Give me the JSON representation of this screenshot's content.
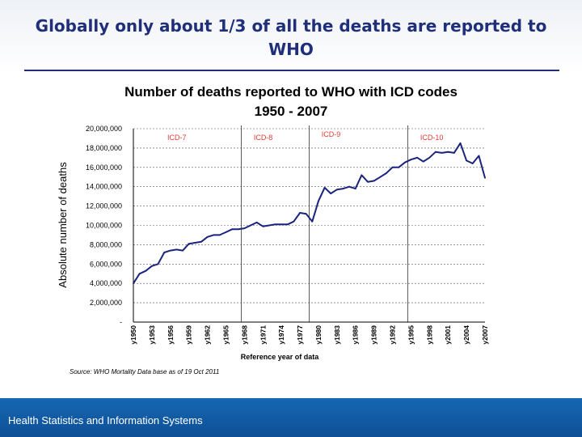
{
  "slide": {
    "title": "Globally only about 1/3 of all the deaths are reported to WHO",
    "footer": "Health Statistics and Information Systems"
  },
  "colors": {
    "line": "#1a237e",
    "icd_label": "#e53935",
    "title": "#1f2f7a",
    "footer": "#1668b4"
  },
  "chart_data": {
    "type": "line",
    "title": "Number of deaths reported to WHO with ICD codes",
    "subtitle": "1950 - 2007",
    "xlabel": "Reference year of data",
    "ylabel": "Absolute number of deaths",
    "source": "Source: WHO Mortality Data base as of 19 Oct 2011",
    "ylim": [
      0,
      20000000
    ],
    "xlim": [
      1950,
      2007
    ],
    "grid": "horizontal-dashed",
    "y_ticks": [
      {
        "value": 0,
        "label": "-"
      },
      {
        "value": 2000000,
        "label": "2,000,000"
      },
      {
        "value": 4000000,
        "label": "4,000,000"
      },
      {
        "value": 6000000,
        "label": "6,000,000"
      },
      {
        "value": 8000000,
        "label": "8,000,000"
      },
      {
        "value": 10000000,
        "label": "10,000,000"
      },
      {
        "value": 12000000,
        "label": "12,000,000"
      },
      {
        "value": 14000000,
        "label": "14,000,000"
      },
      {
        "value": 16000000,
        "label": "16,000,000"
      },
      {
        "value": 18000000,
        "label": "18,000,000"
      },
      {
        "value": 20000000,
        "label": "20,000,000"
      }
    ],
    "x_ticks": [
      {
        "value": 1950,
        "label": "y1950"
      },
      {
        "value": 1953,
        "label": "y1953"
      },
      {
        "value": 1956,
        "label": "y1956"
      },
      {
        "value": 1959,
        "label": "y1959"
      },
      {
        "value": 1962,
        "label": "y1962"
      },
      {
        "value": 1965,
        "label": "y1965"
      },
      {
        "value": 1968,
        "label": "y1968"
      },
      {
        "value": 1971,
        "label": "y1971"
      },
      {
        "value": 1974,
        "label": "y1974"
      },
      {
        "value": 1977,
        "label": "y1977"
      },
      {
        "value": 1980,
        "label": "y1980"
      },
      {
        "value": 1983,
        "label": "y1983"
      },
      {
        "value": 1986,
        "label": "y1986"
      },
      {
        "value": 1989,
        "label": "y1989"
      },
      {
        "value": 1992,
        "label": "y1992"
      },
      {
        "value": 1995,
        "label": "y1995"
      },
      {
        "value": 1998,
        "label": "y1998"
      },
      {
        "value": 2001,
        "label": "y2001"
      },
      {
        "value": 2004,
        "label": "y2004"
      },
      {
        "value": 2007,
        "label": "y2007"
      }
    ],
    "icd_periods": [
      {
        "label": "ICD-7",
        "start": 1950,
        "end": 1967
      },
      {
        "label": "ICD-8",
        "start": 1968,
        "end": 1978
      },
      {
        "label": "ICD-9",
        "start": 1979,
        "end": 1994
      },
      {
        "label": "ICD-10",
        "start": 1995,
        "end": 2007
      }
    ],
    "series": [
      {
        "x": [
          1950,
          1951,
          1952,
          1953,
          1954,
          1955,
          1956,
          1957,
          1958,
          1959,
          1960,
          1961,
          1962,
          1963,
          1964,
          1965,
          1966,
          1967,
          1968,
          1969,
          1970,
          1971,
          1972,
          1973,
          1974,
          1975,
          1976,
          1977,
          1978,
          1979,
          1980,
          1981,
          1982,
          1983,
          1984,
          1985,
          1986,
          1987,
          1988,
          1989,
          1990,
          1991,
          1992,
          1993,
          1994,
          1995,
          1996,
          1997,
          1998,
          1999,
          2000,
          2001,
          2002,
          2003,
          2004,
          2005,
          2006,
          2007
        ],
        "y": [
          4000000,
          5000000,
          5300000,
          5800000,
          6000000,
          7200000,
          7400000,
          7500000,
          7400000,
          8100000,
          8200000,
          8300000,
          8800000,
          9000000,
          9000000,
          9300000,
          9600000,
          9600000,
          9700000,
          10000000,
          10300000,
          9900000,
          10000000,
          10100000,
          10100000,
          10100000,
          10400000,
          11300000,
          11200000,
          10400000,
          12500000,
          13900000,
          13300000,
          13700000,
          13800000,
          14000000,
          13800000,
          15200000,
          14500000,
          14600000,
          15000000,
          15400000,
          16000000,
          16000000,
          16500000,
          16800000,
          17000000,
          16600000,
          17000000,
          17600000,
          17500000,
          17600000,
          17500000,
          18500000,
          16700000,
          16400000,
          17200000,
          14900000
        ]
      }
    ]
  }
}
